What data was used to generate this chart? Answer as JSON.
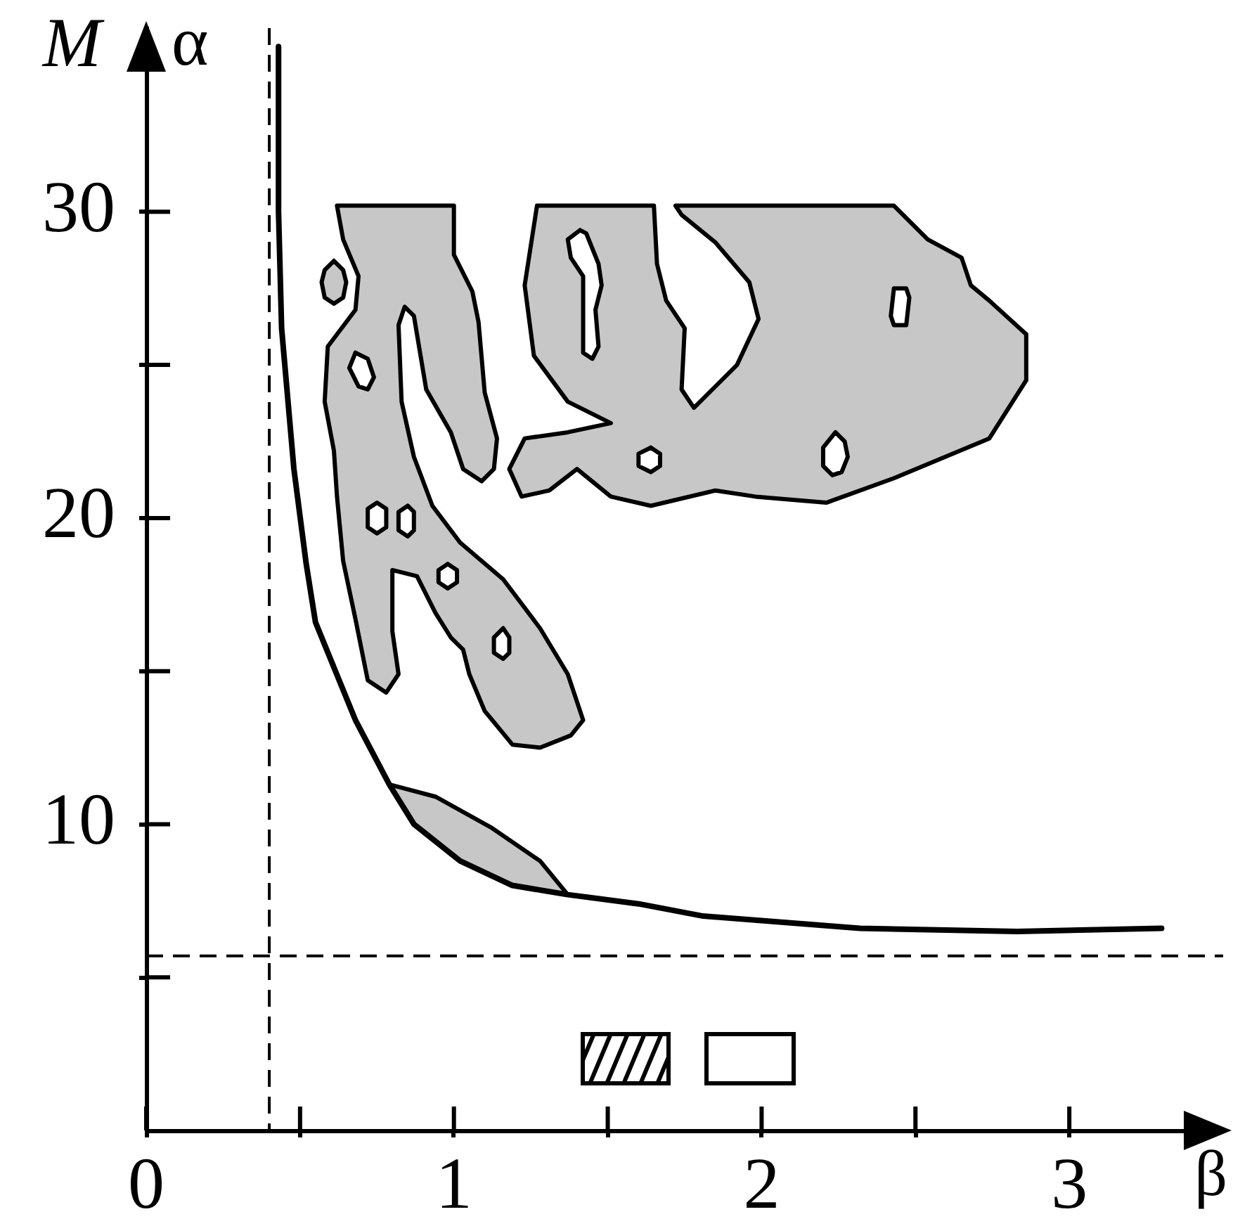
{
  "chart_data": {
    "type": "line",
    "xlabel": "β",
    "ylabel": "α",
    "annotations": [
      "M"
    ],
    "xlim": [
      0,
      3.5
    ],
    "ylim": [
      0,
      36
    ],
    "xticks": [
      0,
      {
        "value": 0.5,
        "label": null
      },
      1,
      {
        "value": 1.5,
        "label": null
      },
      2,
      {
        "value": 2.5,
        "label": null
      },
      3
    ],
    "yticks": [
      {
        "value": 5,
        "label": null
      },
      10,
      {
        "value": 15,
        "label": null
      },
      20,
      {
        "value": 25,
        "label": null
      },
      30
    ],
    "ref_lines": [
      {
        "axis": "x",
        "value": 0.4,
        "line_style": "dashed",
        "color": "#000000"
      },
      {
        "axis": "y",
        "value": 5.7,
        "line_style": "dashed",
        "color": "#000000"
      }
    ],
    "series": [
      {
        "type": "area",
        "color": "#000000",
        "x": [
          0.79,
          0.94,
          1.12,
          1.28,
          1.37,
          1.19,
          1.02,
          0.87,
          0.79
        ],
        "values": [
          11.3,
          10.9,
          9.9,
          8.8,
          7.7,
          8.0,
          8.8,
          10.0,
          11.3
        ]
      },
      {
        "type": "area",
        "color": "#000000",
        "x": [
          0.62,
          1.0,
          1.0,
          1.06,
          1.08,
          1.1,
          1.14,
          1.13,
          1.09,
          1.03,
          0.99,
          0.91,
          0.87,
          0.84,
          0.82,
          0.83,
          0.87,
          0.93,
          1.02,
          1.16,
          1.28,
          1.37,
          1.42,
          1.38,
          1.28,
          1.19,
          1.1,
          1.05,
          1.03,
          0.99,
          0.94,
          0.88,
          0.8,
          0.8,
          0.82,
          0.78,
          0.72,
          0.68,
          0.64,
          0.62,
          0.61,
          0.58,
          0.59,
          0.68,
          0.69,
          0.64,
          0.62,
          null,
          0.68,
          0.72,
          0.74,
          0.72,
          0.69,
          0.66,
          0.68,
          null,
          0.75,
          0.78,
          0.78,
          0.75,
          0.72,
          0.72,
          0.75,
          null,
          0.85,
          0.87,
          0.87,
          0.85,
          0.82,
          0.82,
          0.85,
          null,
          0.98,
          1.01,
          1.01,
          0.98,
          0.95,
          0.95,
          0.98,
          null,
          1.16,
          1.18,
          1.18,
          1.16,
          1.13,
          1.13,
          1.16,
          null,
          0.61,
          0.64,
          0.65,
          0.64,
          0.61,
          0.58,
          0.57,
          0.58,
          0.61
        ],
        "values": [
          30.2,
          30.2,
          28.6,
          27.4,
          26.4,
          24.1,
          22.6,
          21.6,
          21.2,
          21.6,
          22.8,
          24.2,
          26.6,
          26.9,
          26.3,
          23.8,
          22.0,
          20.4,
          19.2,
          18.0,
          16.4,
          14.9,
          13.4,
          12.9,
          12.5,
          12.6,
          13.7,
          14.9,
          15.7,
          16.1,
          16.9,
          18.1,
          18.3,
          16.3,
          14.9,
          14.3,
          14.7,
          16.7,
          18.6,
          20.7,
          22.2,
          23.8,
          25.6,
          26.8,
          27.9,
          29.1,
          30.2,
          null,
          25.4,
          25.2,
          24.6,
          24.2,
          24.3,
          24.9,
          25.4,
          null,
          20.5,
          20.3,
          19.7,
          19.5,
          19.7,
          20.3,
          20.5,
          null,
          20.4,
          20.2,
          19.6,
          19.4,
          19.6,
          20.2,
          20.4,
          null,
          18.5,
          18.3,
          17.9,
          17.7,
          17.9,
          18.3,
          18.5,
          null,
          16.4,
          16.1,
          15.6,
          15.4,
          15.6,
          16.1,
          16.4,
          null,
          28.4,
          28.1,
          27.7,
          27.2,
          27.0,
          27.2,
          27.7,
          28.1,
          28.4
        ]
      },
      {
        "type": "area",
        "color": "#000000",
        "x": [
          1.27,
          1.65,
          1.66,
          1.69,
          1.75,
          1.74,
          1.78,
          1.92,
          1.99,
          1.96,
          1.85,
          1.74,
          1.72,
          2.43,
          2.54,
          2.65,
          2.68,
          2.74,
          2.86,
          2.86,
          2.74,
          2.43,
          2.21,
          1.98,
          1.85,
          1.64,
          1.51,
          1.4,
          1.31,
          1.22,
          1.18,
          1.23,
          1.37,
          1.51,
          1.37,
          1.26,
          1.23,
          1.27,
          null,
          1.41,
          1.43,
          1.47,
          1.48,
          1.46,
          1.47,
          1.45,
          1.42,
          1.42,
          1.42,
          1.38,
          1.37,
          1.41,
          null,
          1.64,
          1.67,
          1.67,
          1.64,
          1.6,
          1.6,
          1.64,
          null,
          2.24,
          2.27,
          2.28,
          2.26,
          2.23,
          2.2,
          2.2,
          2.24,
          null,
          2.43,
          2.47,
          2.48,
          2.47,
          2.43,
          2.42,
          2.43
        ],
        "values": [
          30.2,
          30.2,
          28.3,
          27.1,
          26.2,
          24.2,
          23.6,
          25.0,
          26.5,
          27.7,
          29.0,
          29.9,
          30.2,
          30.2,
          29.1,
          28.5,
          27.6,
          27.1,
          26.0,
          24.5,
          22.6,
          21.3,
          20.5,
          20.7,
          20.9,
          20.4,
          20.7,
          21.6,
          20.9,
          20.7,
          21.6,
          22.6,
          22.8,
          23.1,
          23.8,
          25.3,
          27.6,
          30.2,
          null,
          29.4,
          29.3,
          28.3,
          27.6,
          26.8,
          25.6,
          25.2,
          25.4,
          26.8,
          27.9,
          28.5,
          29.1,
          29.4,
          null,
          22.3,
          22.1,
          21.7,
          21.5,
          21.7,
          22.1,
          22.3,
          null,
          22.8,
          22.5,
          22.0,
          21.5,
          21.4,
          21.7,
          22.3,
          22.8,
          null,
          27.5,
          27.5,
          27.2,
          26.3,
          26.3,
          26.6,
          27.5
        ]
      },
      {
        "color": "#000000",
        "x": [
          0.43,
          0.43,
          0.44,
          0.48,
          0.52,
          0.55,
          0.68,
          0.79,
          0.87,
          1.02,
          1.19,
          1.37,
          1.6,
          1.81,
          2.32,
          2.83,
          3.3
        ],
        "values": [
          35.4,
          30.0,
          26.2,
          21.6,
          18.5,
          16.6,
          13.4,
          11.3,
          10.0,
          8.8,
          8.0,
          7.7,
          7.4,
          7.0,
          6.6,
          6.5,
          6.6
        ]
      }
    ]
  }
}
